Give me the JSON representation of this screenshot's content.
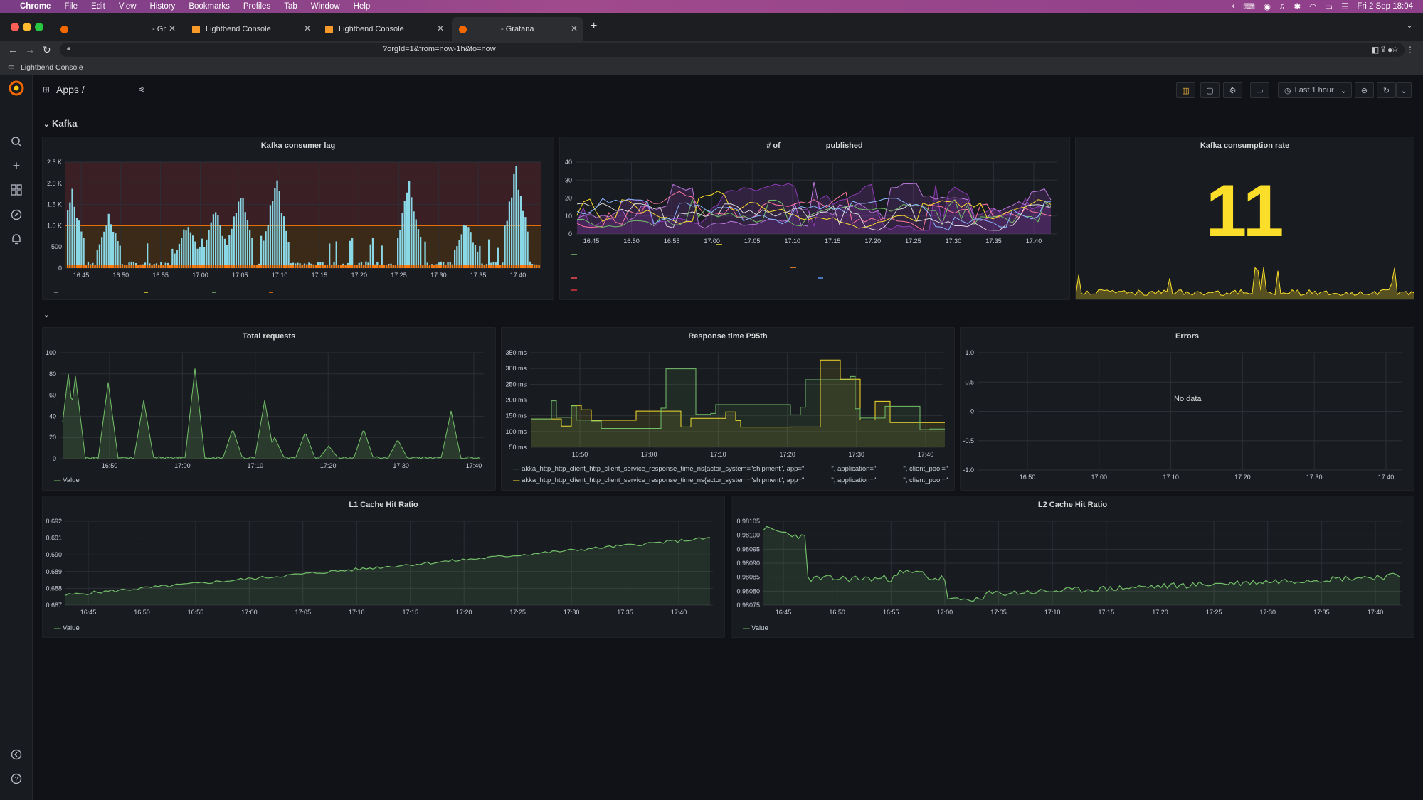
{
  "os_menubar": {
    "app": "Chrome",
    "menus": [
      "File",
      "Edit",
      "View",
      "History",
      "Bookmarks",
      "Profiles",
      "Tab",
      "Window",
      "Help"
    ],
    "clock": "Fri 2 Sep  18:04"
  },
  "browser": {
    "tabs": [
      {
        "title": "- Gr",
        "favicon_color": "#f46800"
      },
      {
        "title": "Lightbend Console",
        "favicon_color": "#f79a2a"
      },
      {
        "title": "Lightbend Console",
        "favicon_color": "#f79a2a"
      },
      {
        "title": "- Grafana",
        "favicon_color": "#f46800"
      }
    ],
    "new_tab": "+",
    "url": "?orgId=1&from=now-1h&to=now",
    "bookmark": "Lightbend Console"
  },
  "dashboard": {
    "breadcrumb": "Apps /",
    "time_range": "Last 1 hour"
  },
  "rows": [
    {
      "title": "Kafka",
      "collapse_icon": "chevron-down"
    },
    {
      "title": "",
      "collapse_icon": "chevron-down"
    }
  ],
  "panels": {
    "kafka_lag": {
      "title": "Kafka consumer lag",
      "y_ticks": [
        "2.5 K",
        "2.0 K",
        "1.5 K",
        "1.0 K",
        "500",
        "0"
      ],
      "x_ticks": [
        "16:45",
        "16:50",
        "16:55",
        "17:00",
        "17:05",
        "17:10",
        "17:15",
        "17:20",
        "17:25",
        "17:30",
        "17:35",
        "17:40"
      ]
    },
    "messages_published": {
      "title_left": "# of",
      "title_right": "published",
      "y_ticks": [
        "40",
        "30",
        "20",
        "10",
        "0"
      ],
      "x_ticks": [
        "16:45",
        "16:50",
        "16:55",
        "17:00",
        "17:05",
        "17:10",
        "17:15",
        "17:20",
        "17:25",
        "17:30",
        "17:35",
        "17:40"
      ]
    },
    "consumption_rate": {
      "title": "Kafka consumption rate",
      "value": "11",
      "value_color": "#fade2a"
    },
    "total_requests": {
      "title": "Total requests",
      "y_ticks": [
        "100",
        "80",
        "60",
        "40",
        "20",
        "0"
      ],
      "x_ticks": [
        "16:50",
        "17:00",
        "17:10",
        "17:20",
        "17:30",
        "17:40"
      ],
      "legend": "Value"
    },
    "response_time": {
      "title": "Response time P95th",
      "y_ticks": [
        "350 ms",
        "300 ms",
        "250 ms",
        "200 ms",
        "150 ms",
        "100 ms",
        "50 ms"
      ],
      "x_ticks": [
        "16:50",
        "17:00",
        "17:10",
        "17:20",
        "17:30",
        "17:40"
      ],
      "legend": [
        {
          "a": "akka_http_http_client_http_client_service_response_time_ns{actor_system=\"shipment\", app=\"",
          "b": "\", application=\"",
          "c": "\", client_pool=\"",
          "color": "#73bf69"
        },
        {
          "a": "akka_http_http_client_http_client_service_response_time_ns{actor_system=\"shipment\", app=\"",
          "b": "\", application=\"",
          "c": "\", client_pool=\"",
          "color": "#fade2a"
        }
      ]
    },
    "errors": {
      "title": "Errors",
      "no_data": "No data",
      "y_ticks": [
        "1.0",
        "0.5",
        "0",
        "-0.5",
        "-1.0"
      ],
      "x_ticks": [
        "16:50",
        "17:00",
        "17:10",
        "17:20",
        "17:30",
        "17:40"
      ]
    },
    "l1_cache": {
      "title": "L1 Cache Hit Ratio",
      "y_ticks": [
        "0.692",
        "0.691",
        "0.690",
        "0.689",
        "0.688",
        "0.687"
      ],
      "x_ticks": [
        "16:45",
        "16:50",
        "16:55",
        "17:00",
        "17:05",
        "17:10",
        "17:15",
        "17:20",
        "17:25",
        "17:30",
        "17:35",
        "17:40"
      ],
      "legend": "Value"
    },
    "l2_cache": {
      "title": "L2 Cache Hit Ratio",
      "y_ticks": [
        "0.98105",
        "0.98100",
        "0.98095",
        "0.98090",
        "0.98085",
        "0.98080",
        "0.98075"
      ],
      "x_ticks": [
        "16:45",
        "16:50",
        "16:55",
        "17:00",
        "17:05",
        "17:10",
        "17:15",
        "17:20",
        "17:25",
        "17:30",
        "17:35",
        "17:40"
      ],
      "legend": "Value"
    }
  },
  "colors": {
    "page_bg": "#111217",
    "panel_bg": "#181b1f",
    "series_green": "#73bf69",
    "series_yellow": "#fade2a",
    "series_cyan": "#8ad8e6",
    "series_orange": "#ff780a",
    "series_purple": "#8f3bb8",
    "threshold_red": "#f2495c"
  }
}
